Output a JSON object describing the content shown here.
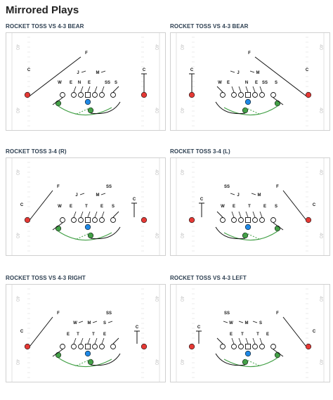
{
  "page": {
    "title": "Mirrored Plays"
  },
  "field_numbers": {
    "top": "40",
    "bottom": "40"
  },
  "plays": [
    {
      "title": "ROCKET TOSS VS 4-3 BEAR",
      "labels": {
        "free_safety": "F",
        "corner_left": "C",
        "corner_right": "C",
        "linebacker_1": "J",
        "linebacker_2": "M",
        "dl_1": "W",
        "dl_2": "E",
        "dl_3": "N",
        "dl_4": "E",
        "dl_5": "SS",
        "dl_6": "S"
      },
      "colors": {
        "wr": "#e53935",
        "back": "#43a047",
        "qb": "#1e88e5",
        "motion": "#43a047"
      }
    },
    {
      "title": "ROCKET TOSS VS 4-3 BEAR",
      "labels": {
        "free_safety": "F",
        "corner_left": "C",
        "corner_right": "C",
        "linebacker_1": "M",
        "linebacker_2": "J",
        "dl_1": "S",
        "dl_2": "SS",
        "dl_3": "E",
        "dl_4": "N",
        "dl_5": "E",
        "dl_6": "W"
      },
      "colors": {
        "wr": "#e53935",
        "back": "#43a047",
        "qb": "#1e88e5",
        "motion": "#43a047"
      }
    },
    {
      "title": "ROCKET TOSS 3-4 (R)",
      "labels": {
        "free_safety": "F",
        "strong_safety": "SS",
        "corner_left": "C",
        "corner_right": "C",
        "linebacker_1": "J",
        "linebacker_2": "M",
        "dl_1": "W",
        "dl_2": "E",
        "dl_3": "T",
        "dl_4": "E",
        "dl_5": "S"
      },
      "colors": {
        "wr": "#e53935",
        "back": "#43a047",
        "qb": "#1e88e5",
        "motion": "#43a047"
      }
    },
    {
      "title": "ROCKET TOSS 3-4 (L)",
      "labels": {
        "free_safety": "F",
        "strong_safety": "SS",
        "corner_left": "C",
        "corner_right": "C",
        "linebacker_1": "M",
        "linebacker_2": "J",
        "dl_1": "S",
        "dl_2": "E",
        "dl_3": "T",
        "dl_4": "E",
        "dl_5": "W"
      },
      "colors": {
        "wr": "#e53935",
        "back": "#43a047",
        "qb": "#1e88e5",
        "motion": "#43a047"
      }
    },
    {
      "title": "ROCKET TOSS VS 4-3 RIGHT",
      "labels": {
        "free_safety": "F",
        "strong_safety": "SS",
        "corner_left": "C",
        "corner_right": "C",
        "linebacker_1": "W",
        "linebacker_2": "M",
        "linebacker_3": "S",
        "dl_1": "E",
        "dl_2": "T",
        "dl_3": "T",
        "dl_4": "E"
      },
      "colors": {
        "wr": "#e53935",
        "back": "#43a047",
        "qb": "#1e88e5",
        "motion": "#43a047"
      }
    },
    {
      "title": "ROCKET TOSS VS 4-3 LEFT",
      "labels": {
        "free_safety": "F",
        "strong_safety": "SS",
        "corner_left": "C",
        "corner_right": "C",
        "linebacker_1": "S",
        "linebacker_2": "M",
        "linebacker_3": "W",
        "dl_1": "E",
        "dl_2": "T",
        "dl_3": "T",
        "dl_4": "E"
      },
      "colors": {
        "wr": "#e53935",
        "back": "#43a047",
        "qb": "#1e88e5",
        "motion": "#43a047"
      }
    }
  ]
}
